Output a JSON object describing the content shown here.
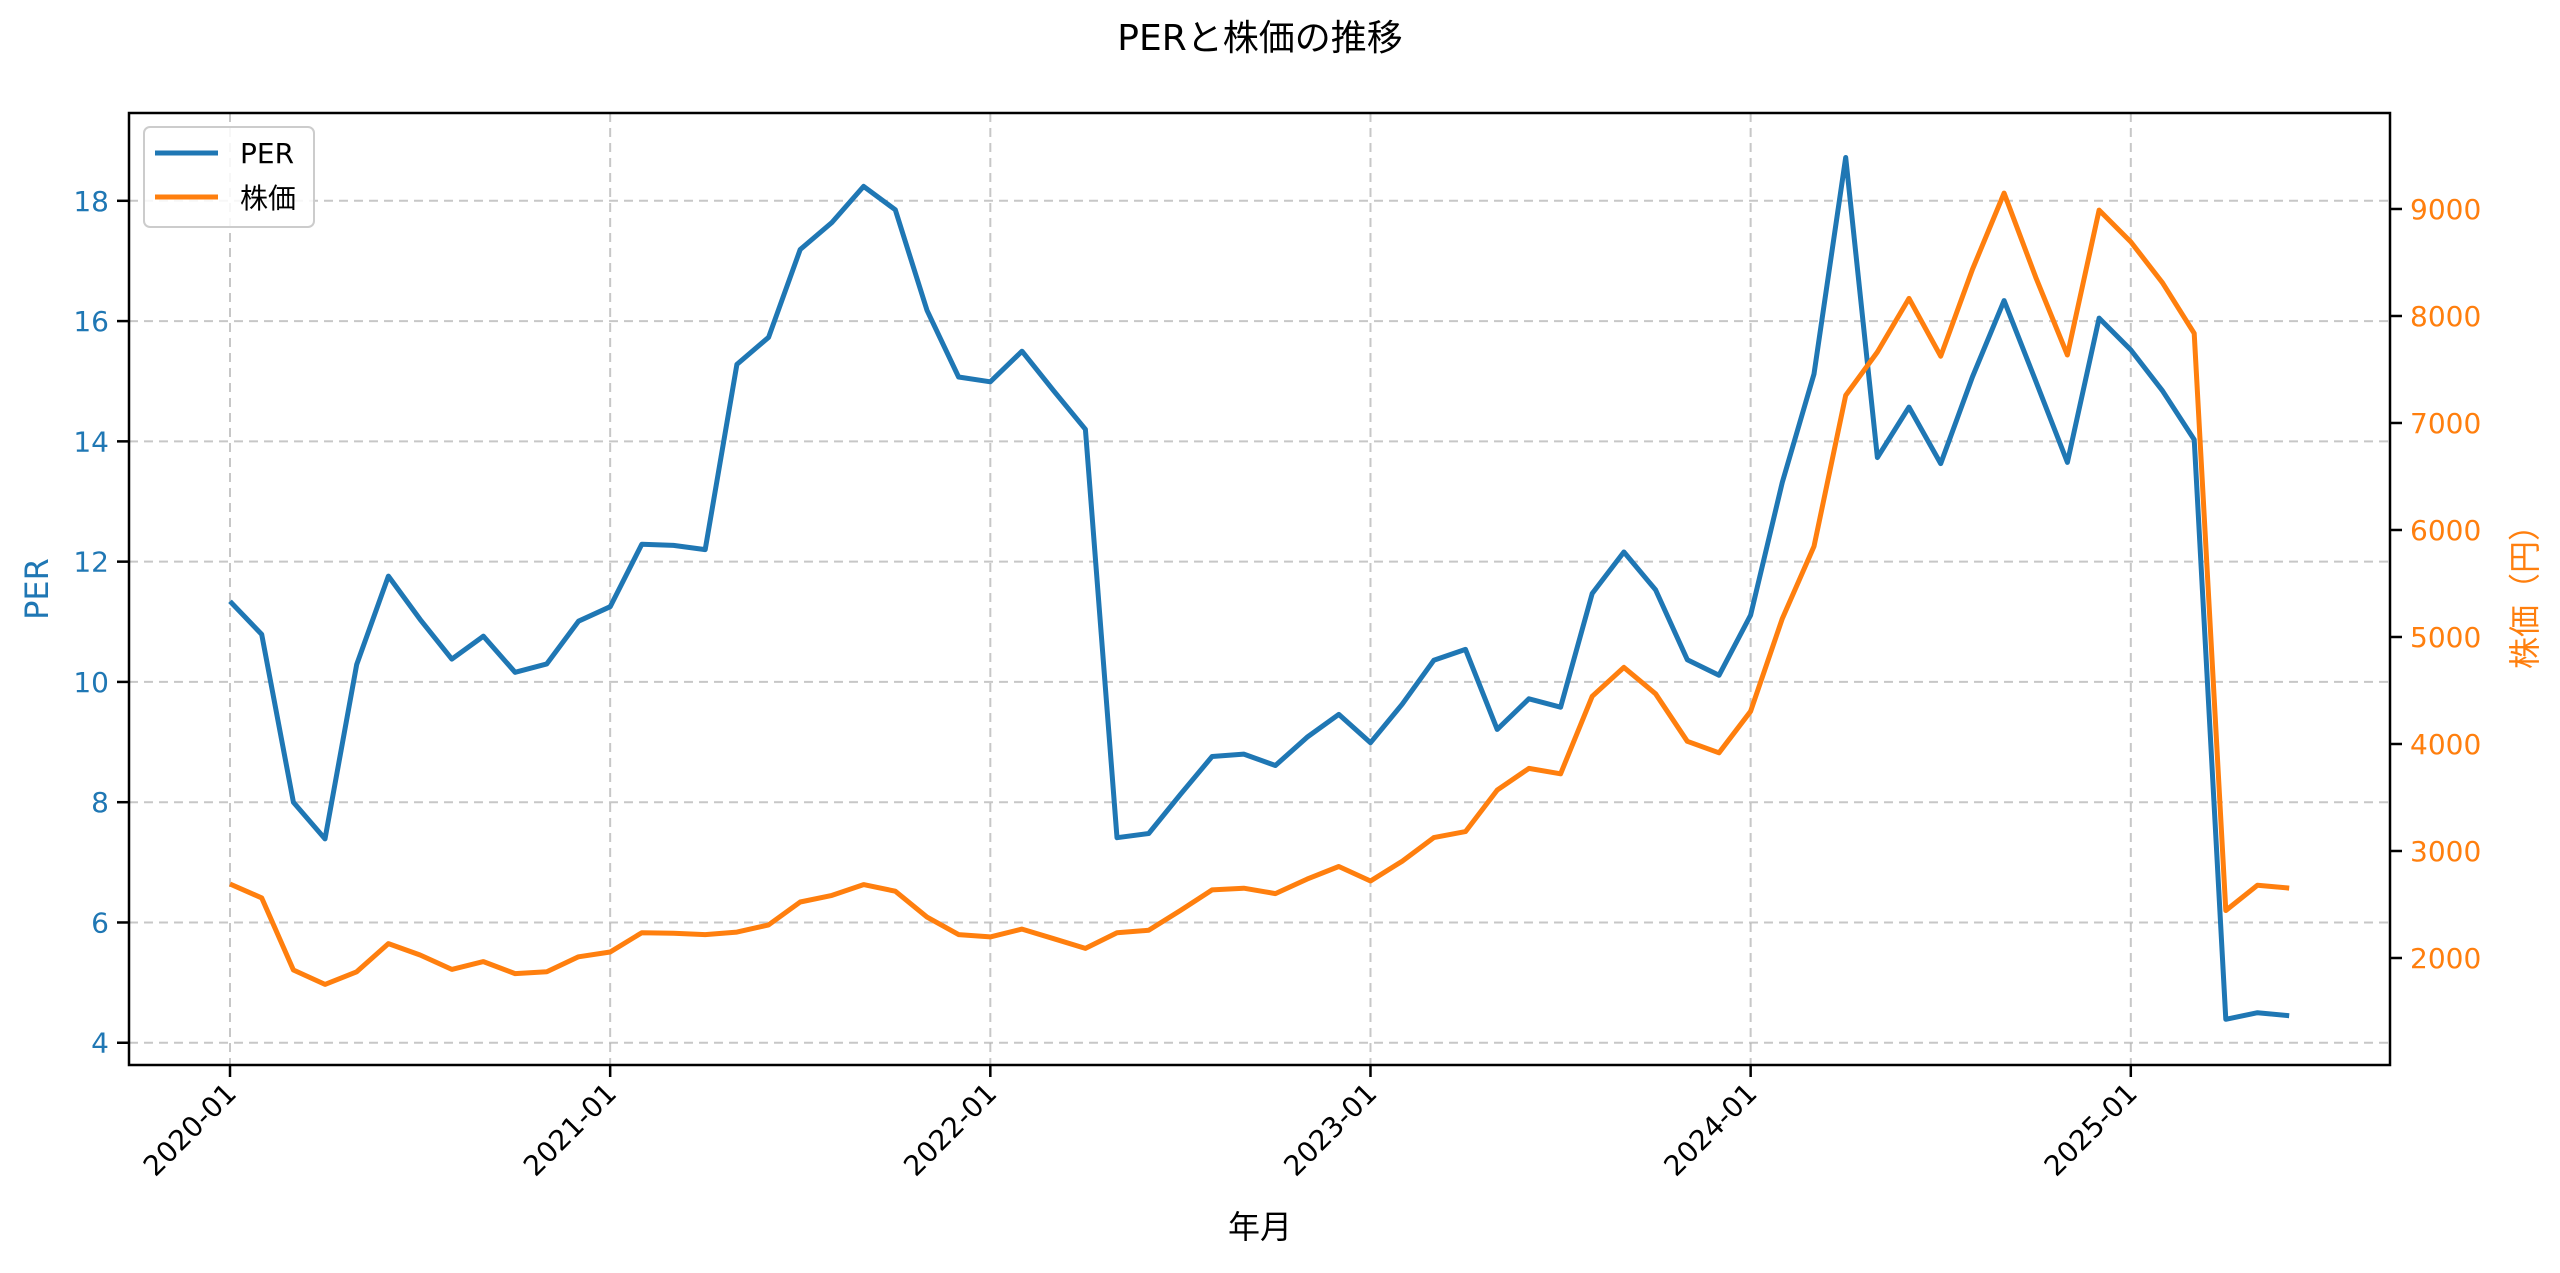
{
  "chart_data": {
    "type": "line",
    "title": "PERと株価の推移",
    "xlabel": "年月",
    "ylabel": "PER",
    "ylabel_right": "株価（円）",
    "ylim": [
      3.63,
      19.46
    ],
    "ylim_right": [
      1000,
      9897
    ],
    "yticks": [
      4,
      6,
      8,
      10,
      12,
      14,
      16,
      18
    ],
    "yticks_right": [
      2000,
      3000,
      4000,
      5000,
      6000,
      7000,
      8000,
      9000
    ],
    "xticks": [
      "2020-01",
      "2021-01",
      "2022-01",
      "2023-01",
      "2024-01",
      "2025-01"
    ],
    "grid": true,
    "legend_position": "upper left",
    "x": [
      "2020-01",
      "2020-02",
      "2020-03",
      "2020-04",
      "2020-05",
      "2020-06",
      "2020-07",
      "2020-08",
      "2020-09",
      "2020-10",
      "2020-11",
      "2020-12",
      "2021-01",
      "2021-02",
      "2021-03",
      "2021-04",
      "2021-05",
      "2021-06",
      "2021-07",
      "2021-08",
      "2021-09",
      "2021-10",
      "2021-11",
      "2021-12",
      "2022-01",
      "2022-02",
      "2022-03",
      "2022-04",
      "2022-05",
      "2022-06",
      "2022-07",
      "2022-08",
      "2022-09",
      "2022-10",
      "2022-11",
      "2022-12",
      "2023-01",
      "2023-02",
      "2023-03",
      "2023-04",
      "2023-05",
      "2023-06",
      "2023-07",
      "2023-08",
      "2023-09",
      "2023-10",
      "2023-11",
      "2023-12",
      "2024-01",
      "2024-02",
      "2024-03",
      "2024-04",
      "2024-05",
      "2024-06",
      "2024-07",
      "2024-08",
      "2024-09",
      "2024-10",
      "2024-11",
      "2024-12",
      "2025-01",
      "2025-02",
      "2025-03",
      "2025-04",
      "2025-05",
      "2025-06"
    ],
    "series": [
      {
        "name": "PER",
        "axis": "left",
        "color": "#1f77b4",
        "values": [
          11.34,
          10.79,
          8.0,
          7.39,
          10.29,
          11.76,
          11.04,
          10.38,
          10.76,
          10.16,
          10.3,
          11.01,
          11.25,
          12.29,
          12.27,
          12.2,
          15.28,
          15.73,
          17.19,
          17.64,
          18.24,
          17.85,
          16.18,
          15.07,
          14.99,
          15.5,
          14.84,
          14.2,
          7.41,
          7.48,
          8.13,
          8.76,
          8.8,
          8.61,
          9.08,
          9.46,
          8.99,
          9.63,
          10.36,
          10.54,
          9.21,
          9.72,
          9.58,
          11.47,
          12.16,
          11.53,
          10.37,
          10.11,
          11.11,
          13.32,
          15.12,
          18.72,
          13.73,
          14.57,
          13.63,
          15.07,
          16.34,
          15.0,
          13.65,
          16.05,
          15.52,
          14.84,
          14.03,
          4.39,
          4.5,
          4.45
        ]
      },
      {
        "name": "株価",
        "axis": "right",
        "color": "#ff7f0e",
        "values": [
          2692,
          2562,
          1888,
          1753,
          1871,
          2135,
          2028,
          1893,
          1966,
          1854,
          1871,
          2011,
          2056,
          2236,
          2231,
          2219,
          2242,
          2309,
          2523,
          2585,
          2686,
          2624,
          2382,
          2219,
          2197,
          2270,
          2180,
          2090,
          2236,
          2259,
          2444,
          2636,
          2652,
          2602,
          2737,
          2855,
          2720,
          2905,
          3125,
          3181,
          3569,
          3772,
          3721,
          4446,
          4716,
          4469,
          4025,
          3918,
          4306,
          5172,
          5847,
          7258,
          7663,
          8164,
          7624,
          8434,
          9148,
          8361,
          7635,
          8990,
          8692,
          8310,
          7838,
          2444,
          2680,
          2653
        ]
      }
    ]
  },
  "colors": {
    "left_axis": "#1f77b4",
    "right_axis": "#ff7f0e",
    "grid": "#b0b0b0"
  },
  "legend": {
    "items": [
      {
        "label": "PER",
        "color": "#1f77b4"
      },
      {
        "label": "株価",
        "color": "#ff7f0e"
      }
    ]
  }
}
